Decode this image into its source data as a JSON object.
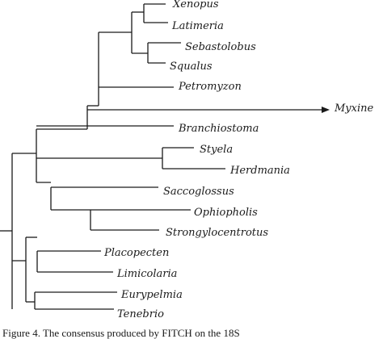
{
  "tree": {
    "taxa": [
      "Xenopus",
      "Latimeria",
      "Sebastolobus",
      "Squalus",
      "Petromyzon",
      "Myxine",
      "Branchiostoma",
      "Styela",
      "Herdmania",
      "Saccoglossus",
      "Ophiopholis",
      "Strongylocentrotus",
      "Placopecten",
      "Limicolaria",
      "Eurypelmia",
      "Tenebrio"
    ]
  },
  "caption": {
    "text": "Figure 4.  The consensus produced by FITCH on the 18S"
  }
}
